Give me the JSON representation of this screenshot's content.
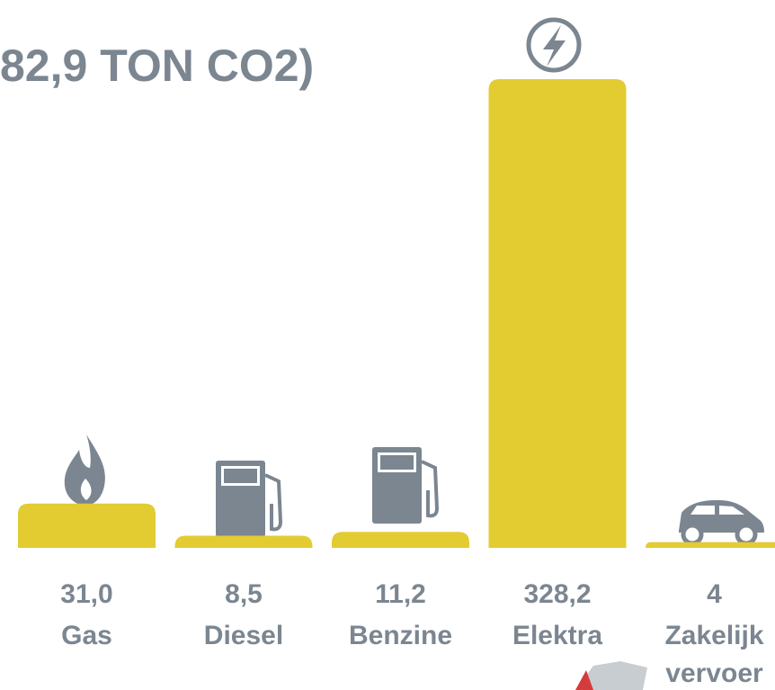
{
  "chart_data": {
    "type": "bar",
    "title": "82,9 TON CO2)",
    "categories": [
      "Gas",
      "Diesel",
      "Benzine",
      "Elektra",
      "Zakelijk vervoer"
    ],
    "values": [
      31.0,
      8.5,
      11.2,
      328.2,
      4
    ],
    "value_labels": [
      "31,0",
      "8,5",
      "11,2",
      "328,2",
      "4"
    ],
    "color": "#e3cb32"
  }
}
